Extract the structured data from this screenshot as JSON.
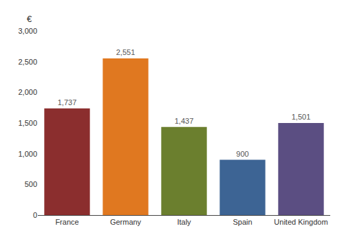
{
  "chart_data": {
    "type": "bar",
    "ylabel": "€",
    "categories": [
      "France",
      "Germany",
      "Italy",
      "Spain",
      "United Kingdom"
    ],
    "values": [
      1737,
      2551,
      1437,
      900,
      1501
    ],
    "value_labels": [
      "1,737",
      "2,551",
      "1,437",
      "900",
      "1,501"
    ],
    "data_labels": true,
    "colors": [
      "#8B2E2E",
      "#E07820",
      "#6B7F2E",
      "#3D6494",
      "#5B4E82"
    ],
    "ylim": [
      0,
      3000
    ],
    "yticks": [
      0,
      500,
      {
        "value": 1000,
        "label": "1,000"
      },
      {
        "value": 1500,
        "label": "1,500"
      },
      {
        "value": 2000,
        "label": "2,000"
      },
      {
        "value": 2500,
        "label": "2,500"
      },
      {
        "value": 3000,
        "label": "3,000"
      }
    ],
    "grid": false
  }
}
